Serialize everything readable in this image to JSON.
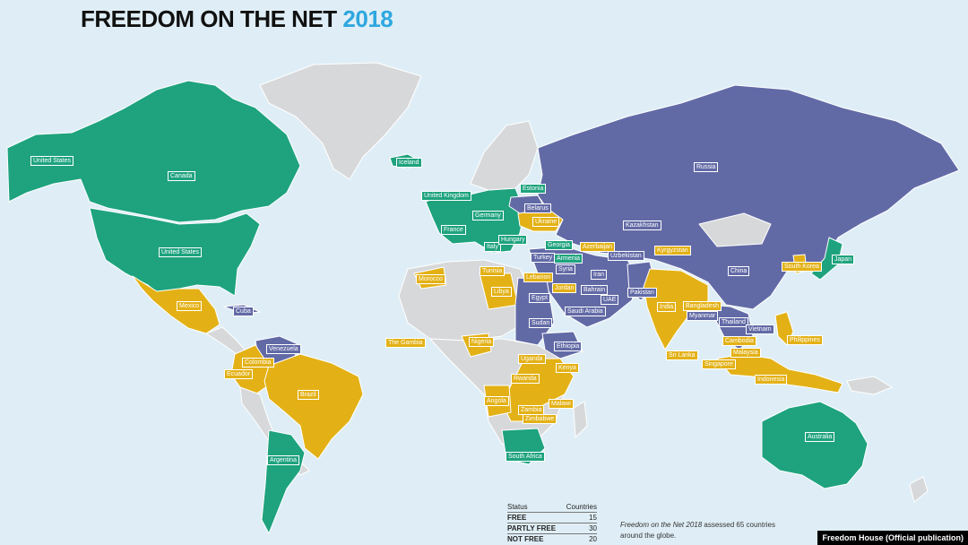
{
  "title": {
    "main": "FREEDOM ON THE NET",
    "year": "2018"
  },
  "colors": {
    "free": "#1ea37e",
    "partly_free": "#e3b116",
    "not_free": "#626aa6",
    "not_assessed": "#d7d8da",
    "ocean": "#dfeef6"
  },
  "labels": [
    {
      "text": "United States",
      "status": "free"
    },
    {
      "text": "Canada",
      "status": "free"
    },
    {
      "text": "United States",
      "status": "free"
    },
    {
      "text": "Iceland",
      "status": "free"
    },
    {
      "text": "United Kingdom",
      "status": "free"
    },
    {
      "text": "Estonia",
      "status": "free"
    },
    {
      "text": "Belarus",
      "status": "not_free"
    },
    {
      "text": "Germany",
      "status": "free"
    },
    {
      "text": "Ukraine",
      "status": "partly_free"
    },
    {
      "text": "France",
      "status": "free"
    },
    {
      "text": "Italy",
      "status": "free"
    },
    {
      "text": "Hungary",
      "status": "free"
    },
    {
      "text": "Georgia",
      "status": "free"
    },
    {
      "text": "Armenia",
      "status": "free"
    },
    {
      "text": "Azerbaijan",
      "status": "partly_free"
    },
    {
      "text": "Kazakhstan",
      "status": "not_free"
    },
    {
      "text": "Kyrgyzstan",
      "status": "partly_free"
    },
    {
      "text": "Uzbekistan",
      "status": "not_free"
    },
    {
      "text": "Russia",
      "status": "not_free"
    },
    {
      "text": "China",
      "status": "not_free"
    },
    {
      "text": "Japan",
      "status": "free"
    },
    {
      "text": "South Korea",
      "status": "partly_free"
    },
    {
      "text": "Turkey",
      "status": "not_free"
    },
    {
      "text": "Syria",
      "status": "not_free"
    },
    {
      "text": "Lebanon",
      "status": "partly_free"
    },
    {
      "text": "Jordan",
      "status": "partly_free"
    },
    {
      "text": "Iran",
      "status": "not_free"
    },
    {
      "text": "Bahrain",
      "status": "not_free"
    },
    {
      "text": "UAE",
      "status": "not_free"
    },
    {
      "text": "Saudi Arabia",
      "status": "not_free"
    },
    {
      "text": "Pakistan",
      "status": "not_free"
    },
    {
      "text": "India",
      "status": "partly_free"
    },
    {
      "text": "Bangladesh",
      "status": "partly_free"
    },
    {
      "text": "Myanmar",
      "status": "not_free"
    },
    {
      "text": "Thailand",
      "status": "not_free"
    },
    {
      "text": "Vietnam",
      "status": "not_free"
    },
    {
      "text": "Cambodia",
      "status": "partly_free"
    },
    {
      "text": "Philippines",
      "status": "partly_free"
    },
    {
      "text": "Malaysia",
      "status": "partly_free"
    },
    {
      "text": "Singapore",
      "status": "partly_free"
    },
    {
      "text": "Sri Lanka",
      "status": "partly_free"
    },
    {
      "text": "Indonesia",
      "status": "partly_free"
    },
    {
      "text": "Australia",
      "status": "free"
    },
    {
      "text": "Tunisia",
      "status": "partly_free"
    },
    {
      "text": "Morocco",
      "status": "partly_free"
    },
    {
      "text": "Libya",
      "status": "partly_free"
    },
    {
      "text": "Egypt",
      "status": "not_free"
    },
    {
      "text": "Sudan",
      "status": "not_free"
    },
    {
      "text": "Ethiopia",
      "status": "not_free"
    },
    {
      "text": "The Gambia",
      "status": "partly_free"
    },
    {
      "text": "Nigeria",
      "status": "partly_free"
    },
    {
      "text": "Uganda",
      "status": "partly_free"
    },
    {
      "text": "Kenya",
      "status": "partly_free"
    },
    {
      "text": "Rwanda",
      "status": "partly_free"
    },
    {
      "text": "Angola",
      "status": "partly_free"
    },
    {
      "text": "Zambia",
      "status": "partly_free"
    },
    {
      "text": "Malawi",
      "status": "partly_free"
    },
    {
      "text": "Zimbabwe",
      "status": "partly_free"
    },
    {
      "text": "South Africa",
      "status": "free"
    },
    {
      "text": "Mexico",
      "status": "partly_free"
    },
    {
      "text": "Cuba",
      "status": "not_free"
    },
    {
      "text": "Venezuela",
      "status": "not_free"
    },
    {
      "text": "Colombia",
      "status": "partly_free"
    },
    {
      "text": "Ecuador",
      "status": "partly_free"
    },
    {
      "text": "Brazil",
      "status": "partly_free"
    },
    {
      "text": "Argentina",
      "status": "free"
    }
  ],
  "legend": {
    "header": {
      "status": "Status",
      "count": "Countries"
    },
    "rows": [
      {
        "status": "FREE",
        "count": "15"
      },
      {
        "status": "PARTLY FREE",
        "count": "30"
      },
      {
        "status": "NOT FREE",
        "count": "20"
      }
    ]
  },
  "note": {
    "publication": "Freedom on the Net 2018",
    "rest_line1": " assessed 65 countries",
    "line2": "around the globe."
  },
  "credit": "Freedom House (Official publication)"
}
